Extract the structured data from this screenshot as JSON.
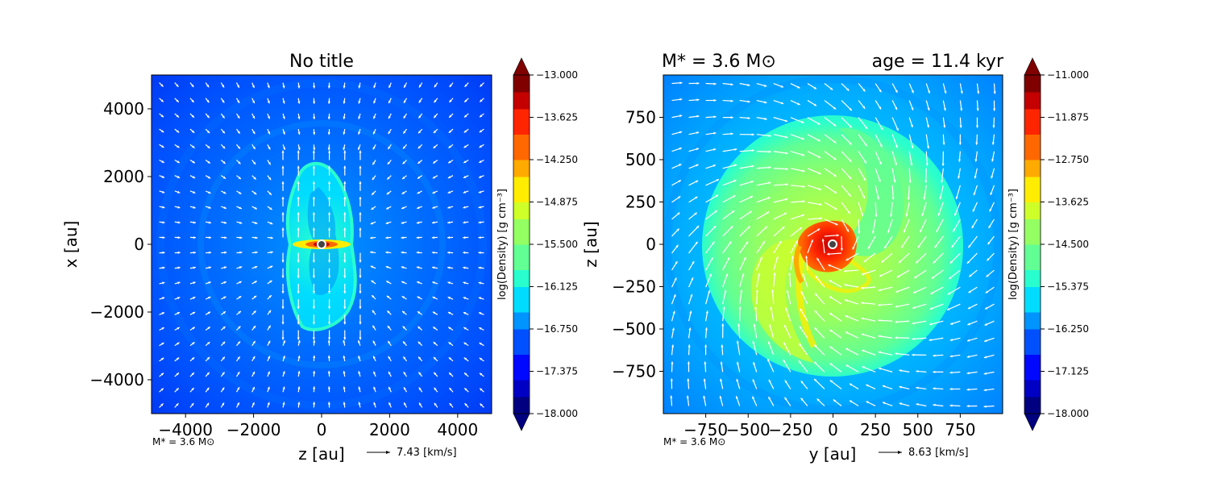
{
  "colors": {
    "jet": [
      "#000080",
      "#0000c4",
      "#0008ff",
      "#0050ff",
      "#0094ff",
      "#00dcfe",
      "#29ffce",
      "#62ff94",
      "#94ff62",
      "#ceff29",
      "#feed00",
      "#ffaa00",
      "#ff6800",
      "#ff2500",
      "#c40000",
      "#800000"
    ],
    "arrow": "#ffffff",
    "sink_ring": "#ffffff",
    "sink_fill": "#444444"
  },
  "chart_data": [
    {
      "type": "heatmap",
      "title": "No title",
      "title_left": "",
      "title_right": "",
      "xlabel": "z [au]",
      "ylabel": "x [au]",
      "xlim": [
        -5000,
        5000
      ],
      "ylim": [
        -5000,
        5000
      ],
      "xticks": [
        -4000,
        -2000,
        0,
        2000,
        4000
      ],
      "yticks": [
        -4000,
        -2000,
        0,
        2000,
        4000
      ],
      "tick_labels_x": [
        "−4000",
        "−2000",
        "0",
        "2000",
        "4000"
      ],
      "tick_labels_y": [
        "−4000",
        "−2000",
        "0",
        "2000",
        "4000"
      ],
      "colorbar": {
        "label": "log(Density) [g cm⁻³]",
        "min": -18.0,
        "max": -13.0,
        "ticks": [
          "−13.000",
          "−13.625",
          "−14.250",
          "−14.875",
          "−15.500",
          "−16.125",
          "−16.750",
          "−17.375",
          "−18.000"
        ]
      },
      "annotation_mass": "M* = 3.6 M⊙",
      "quiver_key": "7.43 [km/s]",
      "background_level": -17.6,
      "structures": "bipolar outflow cavity elongated along x, dense disk midplane at x=0"
    },
    {
      "type": "heatmap",
      "title": "",
      "title_left": "M* = 3.6 M⊙",
      "title_right": "age = 11.4 kyr",
      "xlabel": "y [au]",
      "ylabel": "z [au]",
      "xlim": [
        -1000,
        1000
      ],
      "ylim": [
        -1000,
        1000
      ],
      "xticks": [
        -750,
        -500,
        -250,
        0,
        250,
        500,
        750
      ],
      "yticks": [
        -750,
        -500,
        -250,
        0,
        250,
        500,
        750
      ],
      "tick_labels_x": [
        "−750",
        "−500",
        "−250",
        "0",
        "250",
        "500",
        "750"
      ],
      "tick_labels_y": [
        "−750",
        "−500",
        "−250",
        "0",
        "250",
        "500",
        "750"
      ],
      "colorbar": {
        "label": "log(Density) [g cm⁻³]",
        "min": -18.0,
        "max": -11.0,
        "ticks": [
          "−11.000",
          "−11.875",
          "−12.750",
          "−13.625",
          "−14.500",
          "−15.375",
          "−16.250",
          "−17.125",
          "−18.000"
        ]
      },
      "annotation_mass": "M* = 3.6 M⊙",
      "quiver_key": "8.63 [km/s]",
      "background_level": -16.0,
      "structures": "face-on disk of radius ~750 au with spiral arms, dense core near origin"
    }
  ]
}
